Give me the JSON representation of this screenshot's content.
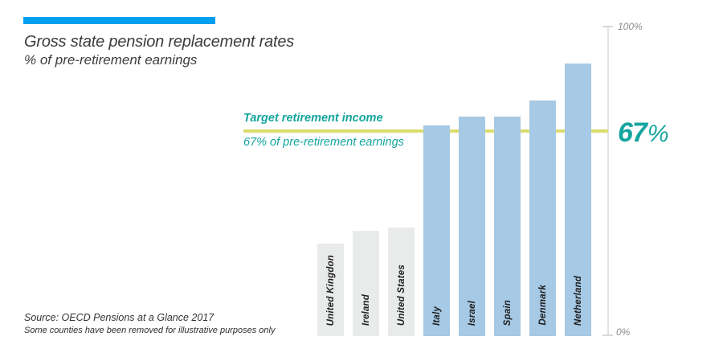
{
  "colors": {
    "accent": "#00a0f0",
    "ink": "#3c3c3c",
    "teal": "#14a59e",
    "target-line": "#dcdc6f",
    "bar-gray": "#e9ebeb",
    "bar-blue": "#a6c9e5",
    "axis": "#e2e2e2",
    "tick-text": "#8c8c8c"
  },
  "header": {
    "title": "Gross state pension replacement rates",
    "subtitle": "% of pre-retirement earnings"
  },
  "target": {
    "label": "Target retirement income",
    "sublabel": "67% of pre-retirement earnings",
    "value": "67",
    "value_unit": "%"
  },
  "axis": {
    "top": "100%",
    "bottom": "0%"
  },
  "source": {
    "line1": "Source: OECD Pensions at a Glance 2017",
    "line2": "Some counties have been removed for illustrative purposes only"
  },
  "chart_data": {
    "type": "bar",
    "title": "Gross state pension replacement rates",
    "subtitle": "% of pre-retirement earnings",
    "categories": [
      "United Kingdon",
      "Ireland",
      "United States",
      "Italy",
      "Israel",
      "Spain",
      "Denmark",
      "Netherland"
    ],
    "values": [
      30,
      34,
      35,
      68,
      71,
      71,
      76,
      88
    ],
    "bar_colors": [
      "#e9ebeb",
      "#e9ebeb",
      "#e9ebeb",
      "#a6c9e5",
      "#a6c9e5",
      "#a6c9e5",
      "#a6c9e5",
      "#a6c9e5"
    ],
    "target_line_value": 67,
    "target_line_label": "Target retirement income",
    "ylabel": "% of pre-retirement earnings",
    "ylim": [
      0,
      100
    ],
    "yticks": [
      "0%",
      "100%"
    ],
    "grid": false,
    "legend": "none",
    "bar_label_position": "inside-bottom-rotated"
  }
}
